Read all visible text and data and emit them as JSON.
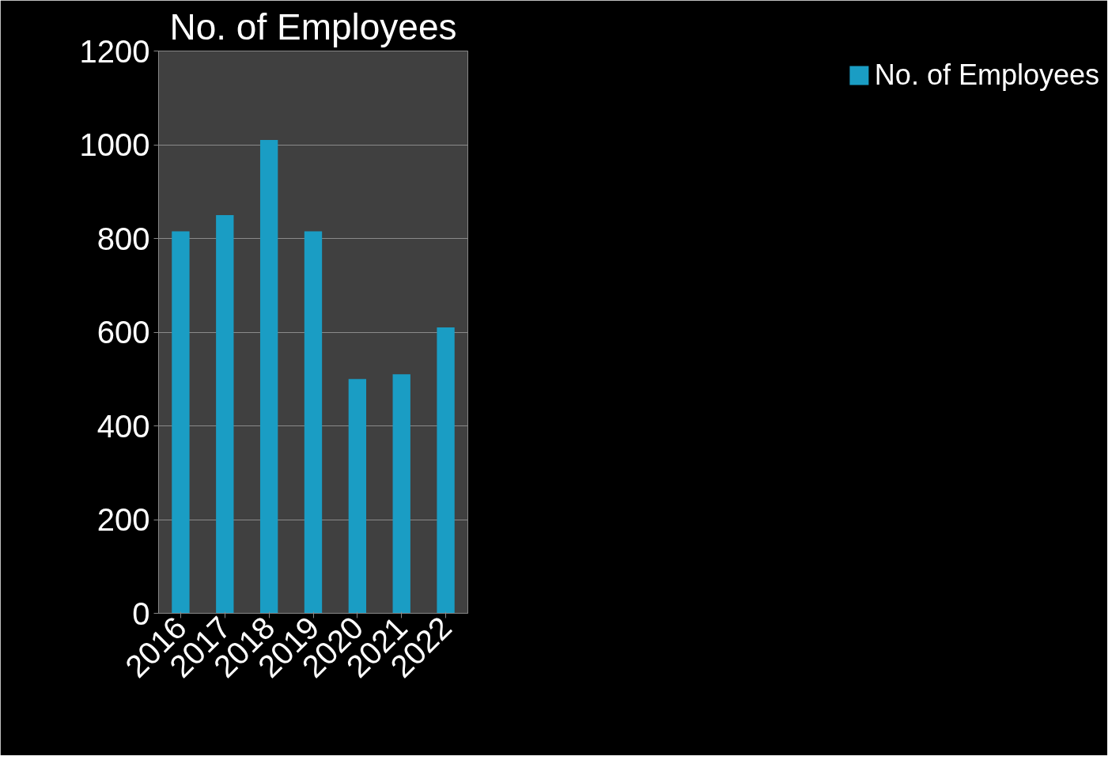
{
  "chart_data": {
    "type": "bar",
    "title": "No. of Employees",
    "categories": [
      "2016",
      "2017",
      "2018",
      "2019",
      "2020",
      "2021",
      "2022"
    ],
    "series": [
      {
        "name": "No. of Employees",
        "color": "#1a9dc4",
        "values": [
          815,
          850,
          1010,
          815,
          500,
          510,
          610
        ]
      }
    ],
    "ylim": [
      0,
      1200
    ],
    "yticks": [
      0,
      200,
      400,
      600,
      800,
      1000,
      1200
    ],
    "grid": "y",
    "legend": "right"
  }
}
